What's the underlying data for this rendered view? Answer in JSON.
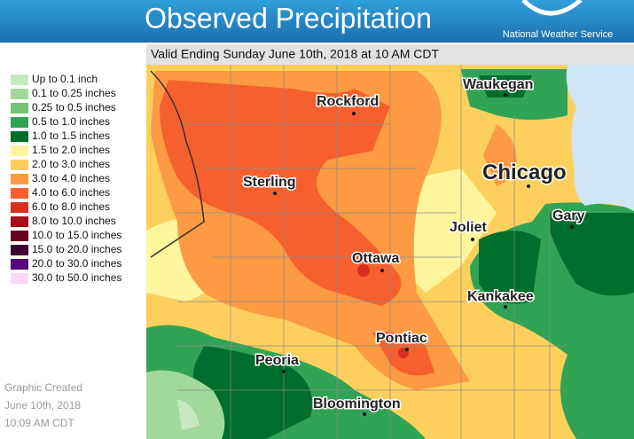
{
  "header": {
    "title": "Observed Precipitation",
    "logo_text": "National Weather Service"
  },
  "subtitle": "Valid Ending Sunday June 10th, 2018 at 10 AM CDT",
  "legend": [
    {
      "label": "Up to 0.1 inch",
      "color": "#c7e9c0"
    },
    {
      "label": "0.1 to 0.25 inches",
      "color": "#a1d99b"
    },
    {
      "label": "0.25 to 0.5 inches",
      "color": "#74c476"
    },
    {
      "label": "0.5 to 1.0 inches",
      "color": "#31a354"
    },
    {
      "label": "1.0 to 1.5 inches",
      "color": "#006d2c"
    },
    {
      "label": "1.5 to 2.0 inches",
      "color": "#fff59d"
    },
    {
      "label": "2.0 to 3.0 inches",
      "color": "#fdd05e"
    },
    {
      "label": "3.0 to 4.0 inches",
      "color": "#fd9a44"
    },
    {
      "label": "4.0 to 6.0 inches",
      "color": "#f6602e"
    },
    {
      "label": "6.0 to 8.0 inches",
      "color": "#d7301f"
    },
    {
      "label": "8.0 to 10.0 inches",
      "color": "#a50f15"
    },
    {
      "label": "10.0 to 15.0 inches",
      "color": "#67001f"
    },
    {
      "label": "15.0 to 20.0 inches",
      "color": "#3f0030"
    },
    {
      "label": "20.0 to 30.0 inches",
      "color": "#54087a"
    },
    {
      "label": "30.0 to 50.0 inches",
      "color": "#ffd6f5"
    }
  ],
  "created": [
    "Graphic Created",
    "June 10th, 2018",
    "10:09 AM CDT"
  ],
  "cities": [
    "Rockford",
    "Waukegan",
    "Chicago",
    "Sterling",
    "Joliet",
    "Gary",
    "Ottawa",
    "Kankakee",
    "Pontiac",
    "Peoria",
    "Bloomington"
  ]
}
